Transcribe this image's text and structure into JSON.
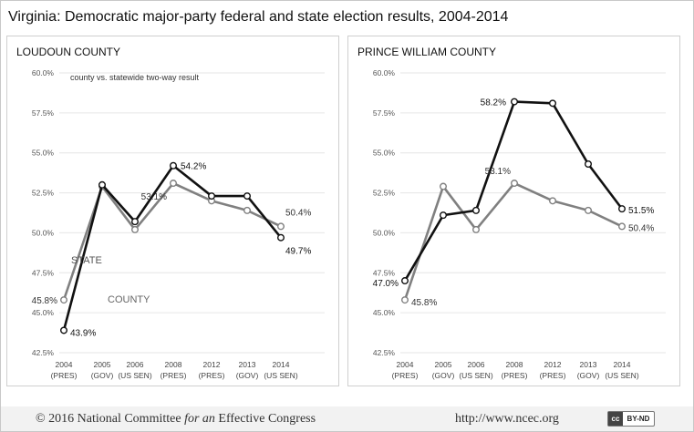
{
  "title": "Virginia: Democratic major-party federal and state election results, 2004-2014",
  "footer": {
    "copyright_prefix": "© 2016 National Committee ",
    "copyright_italic": "for an",
    "copyright_suffix": " Effective Congress",
    "url": "http://www.ncec.org",
    "license_icon": "cc-icon",
    "license_cc": "cc",
    "license_label": "BY-ND"
  },
  "colors": {
    "county": "#111111",
    "state": "#808080",
    "grid": "#e6e6e6"
  },
  "chart_data": [
    {
      "type": "line",
      "title": "LOUDOUN COUNTY",
      "subtitle": "county vs. statewide two-way result",
      "categories": [
        [
          "2004",
          "(PRES)"
        ],
        [
          "2005",
          "(GOV)"
        ],
        [
          "2006",
          "(US SEN)"
        ],
        [
          "2008",
          "(PRES)"
        ],
        [
          "2012",
          "(PRES)"
        ],
        [
          "2013",
          "(GOV)"
        ],
        [
          "2014",
          "(US SEN)"
        ]
      ],
      "yticks": [
        "42.5%",
        "45.0%",
        "47.5%",
        "50.0%",
        "52.5%",
        "55.0%",
        "57.5%",
        "60.0%"
      ],
      "ylim": [
        42.5,
        60.0
      ],
      "grid": true,
      "series": [
        {
          "name": "COUNTY",
          "role": "county",
          "values": [
            43.9,
            53.0,
            50.7,
            54.2,
            52.3,
            52.3,
            49.7
          ]
        },
        {
          "name": "STATE",
          "role": "state",
          "values": [
            45.8,
            52.9,
            50.2,
            53.1,
            52.0,
            51.4,
            50.4
          ]
        }
      ],
      "annotations": [
        {
          "text": "43.9%",
          "series": 0,
          "index": 0
        },
        {
          "text": "45.8%",
          "series": 1,
          "index": 0
        },
        {
          "text": "54.2%",
          "series": 0,
          "index": 3
        },
        {
          "text": "53.1%",
          "series": 1,
          "index": 3
        },
        {
          "text": "50.4%",
          "series": 1,
          "index": 6
        },
        {
          "text": "49.7%",
          "series": 0,
          "index": 6
        }
      ]
    },
    {
      "type": "line",
      "title": "PRINCE WILLIAM COUNTY",
      "categories": [
        [
          "2004",
          "(PRES)"
        ],
        [
          "2005",
          "(GOV)"
        ],
        [
          "2006",
          "(US SEN)"
        ],
        [
          "2008",
          "(PRES)"
        ],
        [
          "2012",
          "(PRES)"
        ],
        [
          "2013",
          "(GOV)"
        ],
        [
          "2014",
          "(US SEN)"
        ]
      ],
      "yticks": [
        "42.5%",
        "45.0%",
        "47.5%",
        "50.0%",
        "52.5%",
        "55.0%",
        "57.5%",
        "60.0%"
      ],
      "ylim": [
        42.5,
        60.0
      ],
      "grid": true,
      "series": [
        {
          "role": "county",
          "values": [
            47.0,
            51.1,
            51.4,
            58.2,
            58.1,
            54.3,
            51.5
          ]
        },
        {
          "role": "state",
          "values": [
            45.8,
            52.9,
            50.2,
            53.1,
            52.0,
            51.4,
            50.4
          ]
        }
      ],
      "annotations": [
        {
          "text": "47.0%",
          "series": 0,
          "index": 0
        },
        {
          "text": "45.8%",
          "series": 1,
          "index": 0
        },
        {
          "text": "58.2%",
          "series": 0,
          "index": 3
        },
        {
          "text": "53.1%",
          "series": 1,
          "index": 3
        },
        {
          "text": "51.5%",
          "series": 0,
          "index": 6
        },
        {
          "text": "50.4%",
          "series": 1,
          "index": 6
        }
      ]
    }
  ]
}
